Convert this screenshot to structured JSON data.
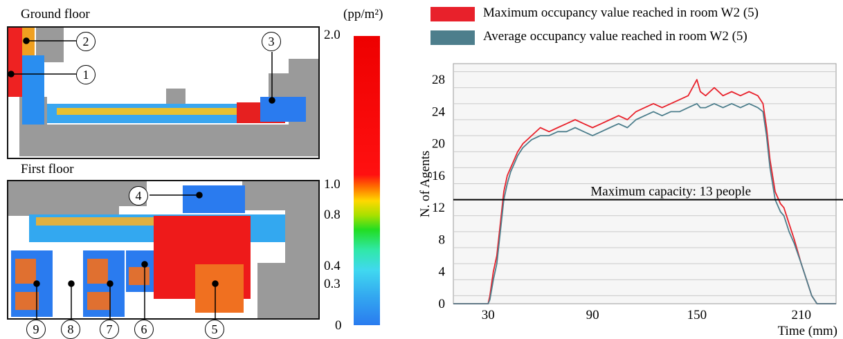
{
  "left_panel": {
    "ground_floor_title": "Ground floor",
    "first_floor_title": "First floor",
    "scale_unit": "(pp/m²)",
    "scale_labels": [
      "2.0",
      "1.0",
      "0.8",
      "0.4",
      "0.3",
      "0"
    ],
    "scale_colors": [
      "#ee0000",
      "#ff6a00",
      "#ffd800",
      "#22dd22",
      "#40d8f0",
      "#2a7bef"
    ],
    "callouts": [
      "1",
      "2",
      "3",
      "4",
      "5",
      "6",
      "7",
      "8",
      "9"
    ]
  },
  "chart_data": {
    "type": "line",
    "xlabel": "Time (mm)",
    "ylabel": "N. of Agents",
    "xlim": [
      10,
      230
    ],
    "ylim": [
      0,
      30
    ],
    "xticks": [
      30,
      90,
      150,
      210
    ],
    "yticks": [
      0,
      4,
      8,
      12,
      16,
      20,
      24,
      28
    ],
    "grid": "horizontal",
    "legend_position": "top",
    "annotation": {
      "text": "Maximum capacity: 13 people",
      "y": 13
    },
    "series": [
      {
        "name": "Maximum occupancy value reached in room W2 (5)",
        "color": "#e8212b",
        "x": [
          10,
          30,
          31,
          33,
          35,
          37,
          39,
          41,
          43,
          45,
          47,
          50,
          55,
          60,
          65,
          70,
          75,
          80,
          85,
          90,
          95,
          100,
          105,
          110,
          115,
          120,
          125,
          130,
          135,
          140,
          145,
          150,
          152,
          155,
          160,
          165,
          170,
          175,
          180,
          185,
          188,
          190,
          192,
          195,
          198,
          200,
          203,
          206,
          210,
          213,
          216,
          219,
          221,
          222,
          230
        ],
        "y": [
          0,
          0,
          1,
          4,
          6,
          10,
          14,
          16,
          17,
          18,
          19,
          20,
          21,
          22,
          21.5,
          22,
          22.5,
          23,
          22.5,
          22,
          22.5,
          23,
          23.5,
          23,
          24,
          24.5,
          25,
          24.5,
          25,
          25.5,
          26,
          28,
          26.5,
          26,
          27,
          26,
          26.5,
          26,
          26.5,
          26,
          25,
          22,
          18,
          14,
          12.5,
          12,
          10,
          8,
          5,
          3,
          1,
          0,
          0,
          0,
          0
        ]
      },
      {
        "name": "Average occupancy value reached in room W2 (5)",
        "color": "#4d7e8c",
        "x": [
          10,
          30,
          31,
          33,
          35,
          37,
          39,
          41,
          43,
          45,
          47,
          50,
          55,
          60,
          65,
          70,
          75,
          80,
          85,
          90,
          95,
          100,
          105,
          110,
          115,
          120,
          125,
          130,
          135,
          140,
          145,
          150,
          152,
          155,
          160,
          165,
          170,
          175,
          180,
          185,
          188,
          190,
          192,
          195,
          198,
          200,
          203,
          206,
          210,
          213,
          216,
          219,
          221,
          222,
          230
        ],
        "y": [
          0,
          0,
          0.5,
          3,
          5,
          9,
          13,
          15,
          16.5,
          17.5,
          18.5,
          19.5,
          20.5,
          21,
          21,
          21.5,
          21.5,
          22,
          21.5,
          21,
          21.5,
          22,
          22.5,
          22,
          23,
          23.5,
          24,
          23.5,
          24,
          24,
          24.5,
          25,
          24.5,
          24.5,
          25,
          24.5,
          25,
          24.5,
          25,
          24.5,
          24,
          21,
          17,
          13,
          11.5,
          11,
          9,
          7.5,
          5,
          3,
          1,
          0,
          0,
          0,
          0
        ]
      }
    ]
  }
}
